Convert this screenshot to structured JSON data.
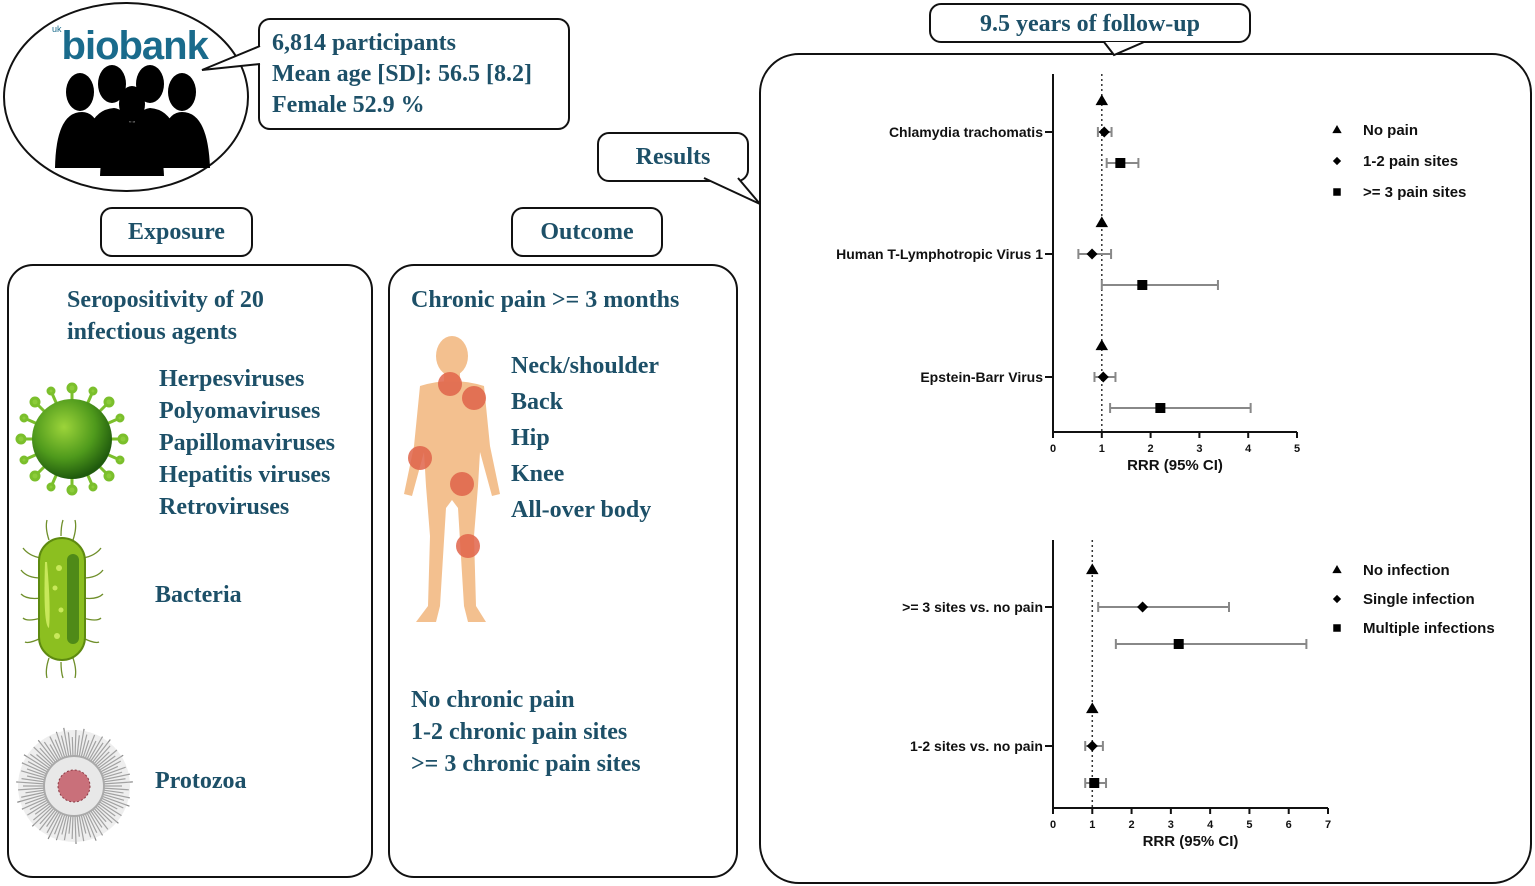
{
  "cohort": {
    "logo_prefix": "uk",
    "logo_text": "biobank",
    "stats": [
      "6,814 participants",
      "Mean age [SD]: 56.5 [8.2]",
      "Female 52.9 %"
    ]
  },
  "exposure": {
    "label": "Exposure",
    "heading_line1": "Seropositivity of 20",
    "heading_line2": "infectious agents",
    "viruses": [
      "Herpesviruses",
      "Polyomaviruses",
      "Papillomaviruses",
      "Hepatitis viruses",
      "Retroviruses"
    ],
    "bacteria": "Bacteria",
    "protozoa": "Protozoa",
    "icons": [
      "virus-icon",
      "bacterium-icon",
      "protozoan-icon"
    ]
  },
  "outcome": {
    "label": "Outcome",
    "heading": "Chronic pain >= 3 months",
    "sites": [
      "Neck/shoulder",
      "Back",
      "Hip",
      "Knee",
      "All-over body"
    ],
    "categories": [
      "No chronic pain",
      "1-2 chronic pain sites",
      ">= 3 chronic pain sites"
    ],
    "colors": {
      "body": "#f3c08f",
      "pain": "#e0644a"
    }
  },
  "results": {
    "label": "Results",
    "followup_label": "9.5 years of follow-up"
  },
  "chart_data": [
    {
      "type": "scatter",
      "subtype": "forest",
      "title": "",
      "xlabel": "RRR (95% CI)",
      "ylabel": "",
      "xlim": [
        0,
        5
      ],
      "xticks": [
        0,
        1,
        2,
        3,
        4,
        5
      ],
      "reference_line": 1,
      "grid": false,
      "legend_position": "right",
      "categories": [
        "Chlamydia trachomatis",
        "Human T-Lymphotropic Virus 1",
        "Epstein-Barr Virus"
      ],
      "series": [
        {
          "name": "No pain",
          "marker": "triangle",
          "values": [
            1,
            1,
            1
          ],
          "ci_low": [
            null,
            null,
            null
          ],
          "ci_high": [
            null,
            null,
            null
          ]
        },
        {
          "name": "1-2 pain sites",
          "marker": "diamond",
          "values": [
            1.05,
            0.8,
            1.03
          ],
          "ci_low": [
            0.92,
            0.52,
            0.85
          ],
          "ci_high": [
            1.2,
            1.19,
            1.28
          ]
        },
        {
          "name": ">= 3 pain sites",
          "marker": "square",
          "values": [
            1.38,
            1.83,
            2.2
          ],
          "ci_low": [
            1.1,
            1.0,
            1.17
          ],
          "ci_high": [
            1.75,
            3.38,
            4.05
          ]
        }
      ]
    },
    {
      "type": "scatter",
      "subtype": "forest",
      "title": "",
      "xlabel": "RRR (95% CI)",
      "ylabel": "",
      "xlim": [
        0,
        7
      ],
      "xticks": [
        0,
        1,
        2,
        3,
        4,
        5,
        6,
        7
      ],
      "reference_line": 1,
      "grid": false,
      "legend_position": "right",
      "categories": [
        ">= 3 sites vs. no pain",
        "1-2 sites vs. no pain"
      ],
      "series": [
        {
          "name": "No infection",
          "marker": "triangle",
          "values": [
            1,
            1
          ],
          "ci_low": [
            null,
            null
          ],
          "ci_high": [
            null,
            null
          ]
        },
        {
          "name": "Single infection",
          "marker": "diamond",
          "values": [
            2.28,
            1.0
          ],
          "ci_low": [
            1.15,
            0.82
          ],
          "ci_high": [
            4.48,
            1.27
          ]
        },
        {
          "name": "Multiple infections",
          "marker": "square",
          "values": [
            3.2,
            1.05
          ],
          "ci_low": [
            1.6,
            0.82
          ],
          "ci_high": [
            6.45,
            1.35
          ]
        }
      ]
    }
  ]
}
